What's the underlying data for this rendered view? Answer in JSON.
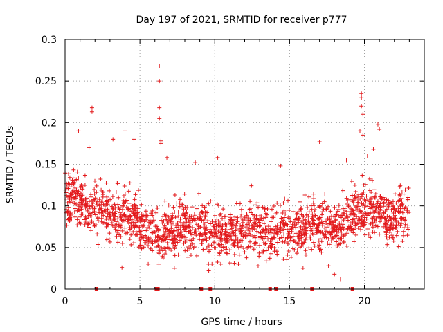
{
  "chart_data": {
    "type": "scatter",
    "title": "Day 197 of 2021, SRMTID for receiver p777",
    "xlabel": "GPS time / hours",
    "ylabel": "SRMTID / TECUs",
    "xlim": [
      0,
      24
    ],
    "ylim": [
      0,
      0.3
    ],
    "xticks": [
      0,
      5,
      10,
      15,
      20
    ],
    "xtick_labels": [
      "0",
      "5",
      "10",
      "15",
      "20"
    ],
    "yticks": [
      0,
      0.05,
      0.1,
      0.15,
      0.2,
      0.25,
      0.3
    ],
    "ytick_labels": [
      "0",
      "0.05",
      "0.1",
      "0.15",
      "0.2",
      "0.25",
      "0.3"
    ],
    "grid": true,
    "marker": "plus",
    "color": "#e31a1c",
    "data_gap_markers_x": [
      2.1,
      6.1,
      6.2,
      9.1,
      9.7,
      13.7,
      14.1,
      16.5,
      19.2
    ],
    "outliers": [
      {
        "x": 1.8,
        "y": 0.218
      },
      {
        "x": 1.8,
        "y": 0.213
      },
      {
        "x": 6.3,
        "y": 0.268
      },
      {
        "x": 6.3,
        "y": 0.25
      },
      {
        "x": 6.3,
        "y": 0.218
      },
      {
        "x": 6.3,
        "y": 0.205
      },
      {
        "x": 6.4,
        "y": 0.178
      },
      {
        "x": 6.4,
        "y": 0.175
      },
      {
        "x": 19.8,
        "y": 0.235
      },
      {
        "x": 19.8,
        "y": 0.23
      },
      {
        "x": 19.8,
        "y": 0.22
      },
      {
        "x": 19.9,
        "y": 0.21
      },
      {
        "x": 20.9,
        "y": 0.198
      },
      {
        "x": 21.0,
        "y": 0.192
      },
      {
        "x": 4.0,
        "y": 0.19
      },
      {
        "x": 4.6,
        "y": 0.18
      },
      {
        "x": 17.0,
        "y": 0.177
      },
      {
        "x": 19.7,
        "y": 0.19
      },
      {
        "x": 19.9,
        "y": 0.185
      },
      {
        "x": 1.6,
        "y": 0.17
      },
      {
        "x": 0.9,
        "y": 0.19
      },
      {
        "x": 3.2,
        "y": 0.18
      },
      {
        "x": 10.2,
        "y": 0.158
      },
      {
        "x": 20.6,
        "y": 0.168
      },
      {
        "x": 20.2,
        "y": 0.16
      },
      {
        "x": 6.8,
        "y": 0.158
      },
      {
        "x": 8.7,
        "y": 0.152
      },
      {
        "x": 18.8,
        "y": 0.155
      },
      {
        "x": 14.4,
        "y": 0.148
      },
      {
        "x": 18.4,
        "y": 0.012
      },
      {
        "x": 18.0,
        "y": 0.018
      },
      {
        "x": 9.6,
        "y": 0.022
      },
      {
        "x": 10.4,
        "y": 0.03
      },
      {
        "x": 3.8,
        "y": 0.026
      },
      {
        "x": 7.3,
        "y": 0.025
      },
      {
        "x": 12.9,
        "y": 0.028
      },
      {
        "x": 15.9,
        "y": 0.025
      },
      {
        "x": 17.6,
        "y": 0.028
      }
    ],
    "series": [
      {
        "name": "SRMTID",
        "x_range": [
          0,
          23
        ],
        "typical_range": [
          0.04,
          0.15
        ],
        "approx_count": 1900,
        "hourly_mean": [
          {
            "x": 0.5,
            "y": 0.11
          },
          {
            "x": 1.5,
            "y": 0.1
          },
          {
            "x": 2.5,
            "y": 0.095
          },
          {
            "x": 3.5,
            "y": 0.085
          },
          {
            "x": 4.5,
            "y": 0.09
          },
          {
            "x": 5.5,
            "y": 0.07
          },
          {
            "x": 6.5,
            "y": 0.065
          },
          {
            "x": 7.5,
            "y": 0.075
          },
          {
            "x": 8.5,
            "y": 0.075
          },
          {
            "x": 9.5,
            "y": 0.07
          },
          {
            "x": 10.5,
            "y": 0.065
          },
          {
            "x": 11.5,
            "y": 0.07
          },
          {
            "x": 12.5,
            "y": 0.075
          },
          {
            "x": 13.5,
            "y": 0.07
          },
          {
            "x": 14.5,
            "y": 0.075
          },
          {
            "x": 15.5,
            "y": 0.07
          },
          {
            "x": 16.5,
            "y": 0.08
          },
          {
            "x": 17.5,
            "y": 0.08
          },
          {
            "x": 18.5,
            "y": 0.075
          },
          {
            "x": 19.5,
            "y": 0.095
          },
          {
            "x": 20.5,
            "y": 0.1
          },
          {
            "x": 21.5,
            "y": 0.085
          },
          {
            "x": 22.5,
            "y": 0.09
          }
        ]
      }
    ]
  }
}
